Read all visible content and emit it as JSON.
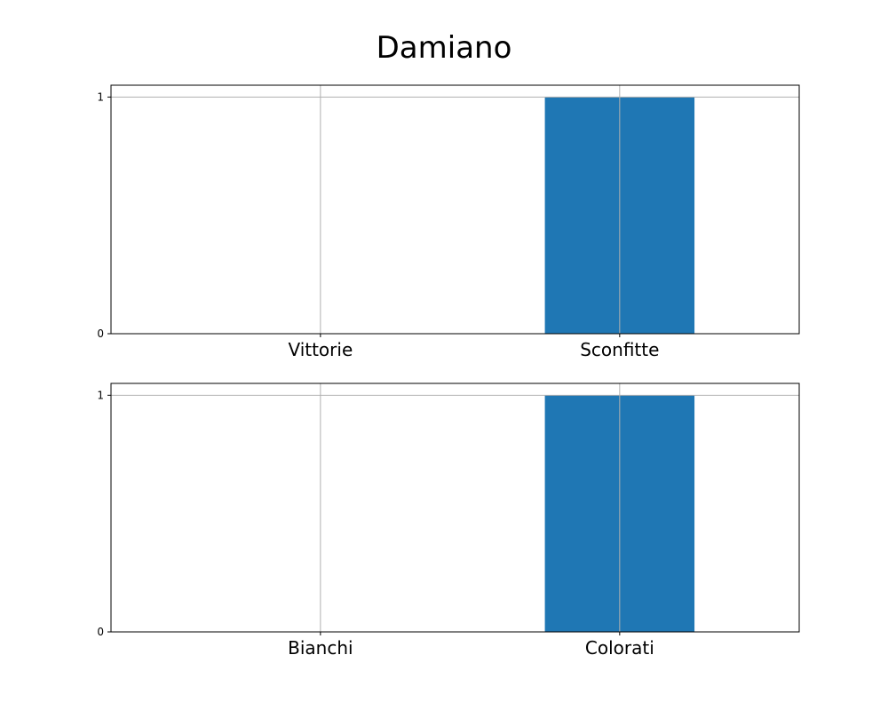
{
  "title": "Damiano",
  "colors": {
    "bar": "#1f77b4",
    "grid": "#b0b0b0",
    "axis": "#000000",
    "background": "#ffffff"
  },
  "chart_data": [
    {
      "type": "bar",
      "categories": [
        "Vittorie",
        "Sconfitte"
      ],
      "values": [
        0,
        1
      ],
      "yticks": [
        0,
        1
      ],
      "ylim": [
        0,
        1.05
      ],
      "grid": true
    },
    {
      "type": "bar",
      "categories": [
        "Bianchi",
        "Colorati"
      ],
      "values": [
        0,
        1
      ],
      "yticks": [
        0,
        1
      ],
      "ylim": [
        0,
        1.05
      ],
      "grid": true
    }
  ]
}
